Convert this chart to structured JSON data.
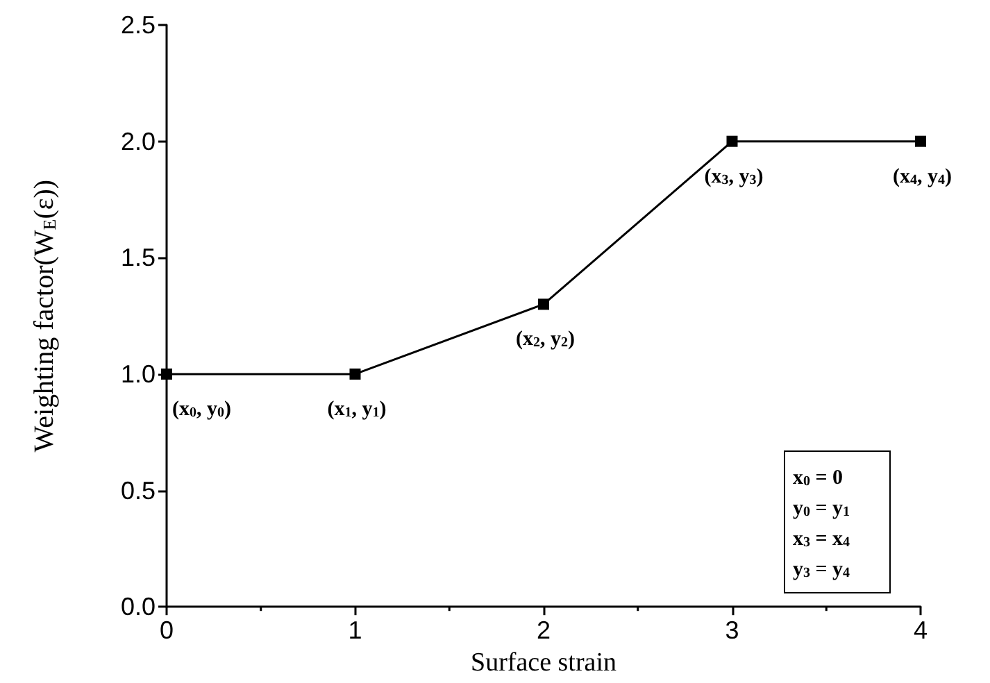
{
  "chart_data": {
    "type": "line",
    "xlabel": "Surface strain",
    "ylabel": "Weighting factor(W$_{E}$(ε))",
    "x": [
      0,
      1,
      2,
      3,
      4
    ],
    "series": [
      {
        "color": "#000000",
        "values": [
          1.0,
          1.0,
          1.3,
          2.0,
          2.0
        ]
      }
    ],
    "xlim": [
      0,
      4
    ],
    "xticks": [
      0,
      1,
      2,
      3,
      4
    ],
    "ylim": [
      0,
      2.5
    ],
    "yticks": [
      {
        "value": 0,
        "label": "0.0"
      },
      {
        "value": 0.5,
        "label": "0.5"
      },
      {
        "value": 1,
        "label": "1.0"
      },
      {
        "value": 1.5,
        "label": "1.5"
      },
      {
        "value": 2,
        "label": "2.0"
      },
      {
        "value": 2.5,
        "label": "2.5"
      }
    ],
    "grid": false,
    "marker": "square",
    "line_style": "solid",
    "annotations": [
      {
        "text": "(x$_{0}$, y$_{0}$)",
        "x": 0,
        "y": 1.0
      },
      {
        "text": "(x$_{1}$, y$_{1}$)",
        "x": 1,
        "y": 1.0
      },
      {
        "text": "(x$_{2}$, y$_{2}$)",
        "x": 2,
        "y": 1.3
      },
      {
        "text": "(x$_{3}$, y$_{3}$)",
        "x": 3,
        "y": 2.0
      },
      {
        "text": "(x$_{4}$, y$_{4}$)",
        "x": 4,
        "y": 2.0
      },
      "x$_{0}$ = 0",
      "y$_{0}$ = y$_{1}$",
      "x$_{3}$ = x$_{4}$",
      "y$_{3}$ = y$_{4}$"
    ]
  }
}
